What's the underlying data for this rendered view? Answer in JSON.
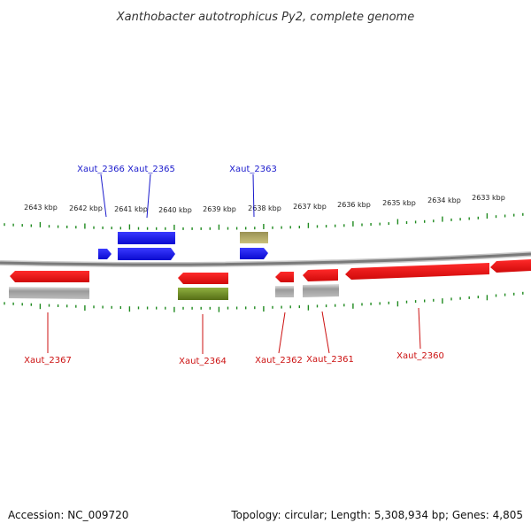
{
  "title": "Xanthobacter autotrophicus Py2, complete genome",
  "footer": {
    "accession": "Accession: NC_009720",
    "summary": "Topology: circular; Length: 5,308,934 bp; Genes: 4,805"
  },
  "scale": {
    "labels": [
      "2643 kbp",
      "2642 kbp",
      "2641 kbp",
      "2640 kbp",
      "2639 kbp",
      "2638 kbp",
      "2637 kbp",
      "2636 kbp",
      "2635 kbp",
      "2634 kbp",
      "2633 kbp"
    ]
  },
  "genes": [
    {
      "name": "Xaut_2366",
      "strand": "forward"
    },
    {
      "name": "Xaut_2365",
      "strand": "forward"
    },
    {
      "name": "Xaut_2363",
      "strand": "forward"
    },
    {
      "name": "Xaut_2367",
      "strand": "reverse"
    },
    {
      "name": "Xaut_2364",
      "strand": "reverse"
    },
    {
      "name": "Xaut_2362",
      "strand": "reverse"
    },
    {
      "name": "Xaut_2361",
      "strand": "reverse"
    },
    {
      "name": "Xaut_2360",
      "strand": "reverse"
    }
  ],
  "colors": {
    "forward_gene": "#1a1aee",
    "reverse_gene": "#ee1111",
    "forward_label": "#1a1acc",
    "reverse_label": "#cc1111",
    "tick": "#1f8a1f",
    "backbone": "#7a7a7a",
    "feature_gray": "#a8a8a8",
    "feature_olive": "#6b8a22",
    "feature_khaki": "#bdb76b"
  }
}
